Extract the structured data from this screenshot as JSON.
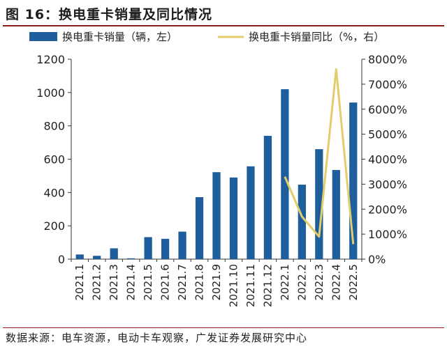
{
  "figure_title": "图 16：换电重卡销量及同比情况",
  "source": "数据来源：电车资源，电动卡车观察，广发证券发展研究中心",
  "colors": {
    "bar": "#1f5e9c",
    "line": "#e3cd6a",
    "rule": "#8b1e1e"
  },
  "chart_data": {
    "type": "bar",
    "categories": [
      "2021.1",
      "2021.2",
      "2021.3",
      "2021.4",
      "2021.5",
      "2021.6",
      "2021.7",
      "2021.8",
      "2021.9",
      "2021.10",
      "2021.11",
      "2021.12",
      "2022.1",
      "2022.2",
      "2022.3",
      "2022.4",
      "2022.5"
    ],
    "series": [
      {
        "name": "换电重卡销量（辆，左）",
        "type": "bar",
        "axis": "left",
        "values": [
          28,
          20,
          65,
          5,
          132,
          122,
          165,
          372,
          522,
          490,
          557,
          740,
          1020,
          447,
          660,
          535,
          940
        ]
      },
      {
        "name": "换电重卡销量同比（%，右）",
        "type": "line",
        "axis": "right",
        "values": [
          null,
          null,
          null,
          null,
          null,
          null,
          null,
          null,
          null,
          null,
          null,
          null,
          3300,
          1700,
          900,
          7600,
          600
        ]
      }
    ],
    "y_left": {
      "ticks": [
        "0",
        "200",
        "400",
        "600",
        "800",
        "1000",
        "1200"
      ],
      "lim": [
        0,
        1200
      ]
    },
    "y_right": {
      "ticks": [
        "0%",
        "1000%",
        "2000%",
        "3000%",
        "4000%",
        "5000%",
        "6000%",
        "7000%",
        "8000%"
      ],
      "lim": [
        0,
        8000
      ]
    },
    "legend_position": "top",
    "grid": false
  }
}
